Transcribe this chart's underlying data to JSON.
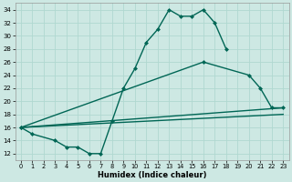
{
  "xlabel": "Humidex (Indice chaleur)",
  "xlim": [
    -0.5,
    23.5
  ],
  "ylim": [
    11,
    35
  ],
  "xticks": [
    0,
    1,
    2,
    3,
    4,
    5,
    6,
    7,
    8,
    9,
    10,
    11,
    12,
    13,
    14,
    15,
    16,
    17,
    18,
    19,
    20,
    21,
    22,
    23
  ],
  "yticks": [
    12,
    14,
    16,
    18,
    20,
    22,
    24,
    26,
    28,
    30,
    32,
    34
  ],
  "bg_color": "#cde8e3",
  "grid_color": "#b0d8d0",
  "lc": "#006655",
  "curve1_x": [
    0,
    1,
    3,
    4,
    5,
    6,
    7,
    8,
    9,
    10,
    11,
    12,
    13,
    14,
    15,
    16,
    17,
    18
  ],
  "curve1_y": [
    16,
    15,
    14,
    13,
    13,
    12,
    12,
    17,
    22,
    25,
    29,
    31,
    34,
    33,
    33,
    34,
    32,
    28
  ],
  "curve2_x": [
    0,
    16,
    20,
    21,
    22,
    23
  ],
  "curve2_y": [
    16,
    26,
    24,
    22,
    19,
    19
  ],
  "curve3_x": [
    0,
    23
  ],
  "curve3_y": [
    16,
    18
  ],
  "curve4_x": [
    0,
    23
  ],
  "curve4_y": [
    16,
    19
  ]
}
